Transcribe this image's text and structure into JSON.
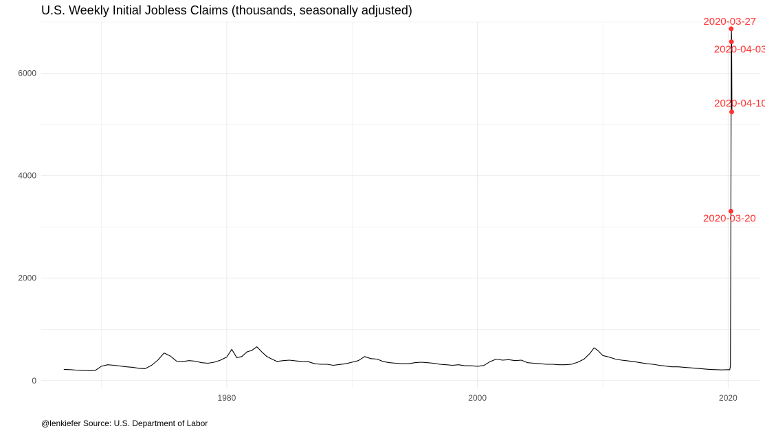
{
  "title": "U.S. Weekly Initial Jobless Claims (thousands, seasonally adjusted)",
  "caption": "@lenkiefer Source: U.S. Department of Labor",
  "colors": {
    "line": "#000000",
    "highlight": "#ff3333",
    "grid": "#ebebeb"
  },
  "chart_data": {
    "type": "line",
    "title": "U.S. Weekly Initial Jobless Claims (thousands, seasonally adjusted)",
    "xlabel": "",
    "ylabel": "",
    "xlim": [
      1965.2,
      2022.5
    ],
    "ylim": [
      -150,
      7000
    ],
    "x_ticks": [
      1980,
      2000,
      2020
    ],
    "y_ticks": [
      0,
      2000,
      4000,
      6000
    ],
    "grid": true,
    "legend": "none",
    "series": [
      {
        "x": [
          1967.0,
          1967.5,
          1968.0,
          1968.5,
          1969.0,
          1969.5,
          1970.0,
          1970.5,
          1971.0,
          1971.5,
          1972.0,
          1972.5,
          1973.0,
          1973.5,
          1974.0,
          1974.5,
          1975.0,
          1975.5,
          1976.0,
          1976.5,
          1977.0,
          1977.5,
          1978.0,
          1978.5,
          1979.0,
          1979.5,
          1980.0,
          1980.4,
          1980.8,
          1981.2,
          1981.6,
          1982.0,
          1982.4,
          1982.8,
          1983.2,
          1983.6,
          1984.0,
          1984.5,
          1985.0,
          1985.5,
          1986.0,
          1986.5,
          1987.0,
          1987.5,
          1988.0,
          1988.5,
          1989.0,
          1989.5,
          1990.0,
          1990.5,
          1991.0,
          1991.5,
          1992.0,
          1992.5,
          1993.0,
          1993.5,
          1994.0,
          1994.5,
          1995.0,
          1995.5,
          1996.0,
          1996.5,
          1997.0,
          1997.5,
          1998.0,
          1998.5,
          1999.0,
          1999.5,
          2000.0,
          2000.5,
          2001.0,
          2001.5,
          2002.0,
          2002.5,
          2003.0,
          2003.5,
          2004.0,
          2004.5,
          2005.0,
          2005.5,
          2006.0,
          2006.5,
          2007.0,
          2007.5,
          2008.0,
          2008.5,
          2009.0,
          2009.3,
          2009.6,
          2010.0,
          2010.5,
          2011.0,
          2011.5,
          2012.0,
          2012.5,
          2013.0,
          2013.5,
          2014.0,
          2014.5,
          2015.0,
          2015.5,
          2016.0,
          2016.5,
          2017.0,
          2017.5,
          2018.0,
          2018.5,
          2019.0,
          2019.5,
          2020.0,
          2020.12,
          2020.18,
          2020.2,
          2020.22,
          2020.24,
          2020.26,
          2020.28,
          2020.3
        ],
        "y": [
          220,
          215,
          205,
          200,
          195,
          198,
          280,
          310,
          300,
          285,
          270,
          260,
          240,
          235,
          300,
          400,
          540,
          480,
          380,
          375,
          390,
          380,
          350,
          340,
          360,
          400,
          460,
          610,
          450,
          470,
          560,
          590,
          660,
          560,
          470,
          420,
          375,
          390,
          400,
          385,
          375,
          370,
          330,
          320,
          320,
          300,
          315,
          330,
          360,
          390,
          470,
          430,
          420,
          370,
          350,
          340,
          330,
          330,
          350,
          360,
          350,
          340,
          320,
          310,
          300,
          310,
          290,
          290,
          280,
          295,
          370,
          420,
          400,
          410,
          390,
          400,
          350,
          340,
          330,
          320,
          320,
          310,
          310,
          320,
          360,
          420,
          540,
          640,
          590,
          490,
          460,
          420,
          400,
          385,
          370,
          350,
          330,
          320,
          300,
          285,
          270,
          270,
          260,
          250,
          240,
          230,
          220,
          215,
          210,
          215,
          211,
          282,
          1807,
          3307,
          5930,
          6867,
          6615,
          5245
        ]
      }
    ],
    "annotations": [
      {
        "label": "2020-03-20",
        "x": 2020.22,
        "y": 3307
      },
      {
        "label": "2020-03-27",
        "x": 2020.24,
        "y": 6867
      },
      {
        "label": "2020-04-03",
        "x": 2020.26,
        "y": 6615
      },
      {
        "label": "2020-04-10",
        "x": 2020.28,
        "y": 5245
      }
    ]
  }
}
